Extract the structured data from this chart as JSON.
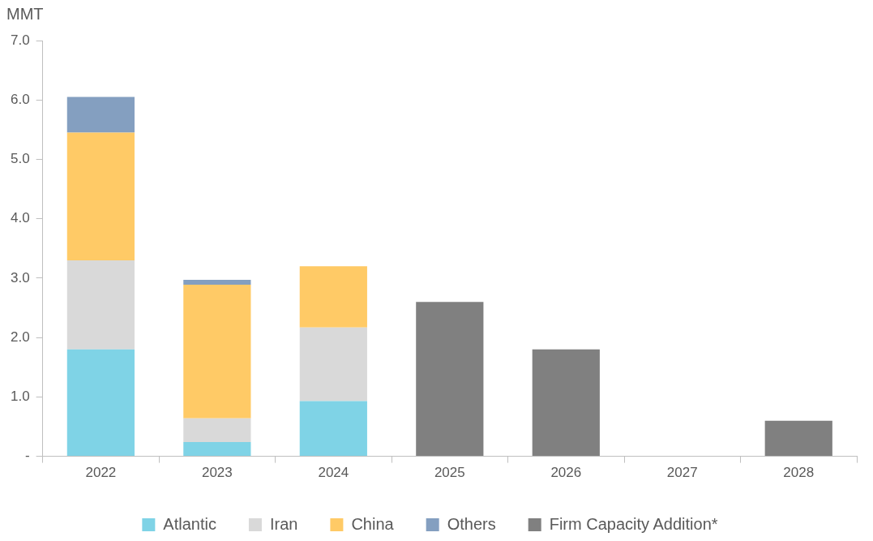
{
  "chart_data": {
    "type": "bar",
    "ylabel": "MMT",
    "categories": [
      "2022",
      "2023",
      "2024",
      "2025",
      "2026",
      "2027",
      "2028"
    ],
    "series": [
      {
        "name": "Atlantic",
        "color": "#7fd3e6",
        "values": [
          1.8,
          0.24,
          0.93,
          null,
          null,
          null,
          null
        ]
      },
      {
        "name": "Iran",
        "color": "#d9d9d9",
        "values": [
          1.5,
          0.4,
          1.24,
          null,
          null,
          null,
          null
        ]
      },
      {
        "name": "China",
        "color": "#ffca66",
        "values": [
          2.15,
          2.25,
          1.03,
          null,
          null,
          null,
          null
        ]
      },
      {
        "name": "Others",
        "color": "#849fc0",
        "values": [
          0.6,
          0.08,
          null,
          null,
          null,
          null,
          null
        ]
      },
      {
        "name": "Firm Capacity Addition*",
        "color": "#808080",
        "values": [
          null,
          null,
          null,
          2.6,
          1.8,
          null,
          0.6
        ]
      }
    ],
    "stacked": true,
    "ylim": [
      0,
      7
    ],
    "yticks": [
      {
        "value": 0,
        "label": "-"
      },
      {
        "value": 1,
        "label": "1.0"
      },
      {
        "value": 2,
        "label": "2.0"
      },
      {
        "value": 3,
        "label": "3.0"
      },
      {
        "value": 4,
        "label": "4.0"
      },
      {
        "value": 5,
        "label": "5.0"
      },
      {
        "value": 6,
        "label": "6.0"
      },
      {
        "value": 7,
        "label": "7.0"
      }
    ],
    "grid": false,
    "legend": "bottom"
  }
}
